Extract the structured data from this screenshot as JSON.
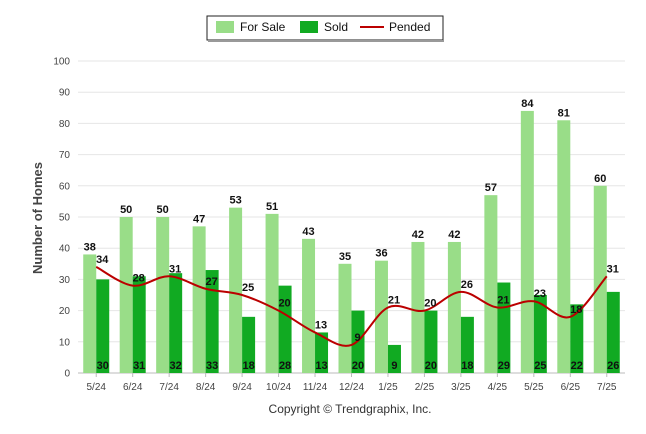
{
  "chart_data": {
    "type": "bar",
    "ylabel": "Number of Homes",
    "ylim": [
      0,
      100
    ],
    "yticks": [
      0,
      10,
      20,
      30,
      40,
      50,
      60,
      70,
      80,
      90,
      100
    ],
    "grid": true,
    "legend_position": "top-center",
    "credit": "Copyright © Trendgraphix, Inc.",
    "categories": [
      "5/24",
      "6/24",
      "7/24",
      "8/24",
      "9/24",
      "10/24",
      "11/24",
      "12/24",
      "1/25",
      "2/25",
      "3/25",
      "4/25",
      "5/25",
      "6/25",
      "7/25"
    ],
    "series": [
      {
        "name": "For Sale",
        "kind": "bar",
        "color": "#99dd88",
        "values": [
          38,
          50,
          50,
          47,
          53,
          51,
          43,
          35,
          36,
          42,
          42,
          57,
          84,
          81,
          60
        ]
      },
      {
        "name": "Sold",
        "kind": "bar",
        "color": "#11aa22",
        "values": [
          30,
          31,
          32,
          33,
          18,
          28,
          13,
          20,
          9,
          20,
          18,
          29,
          25,
          22,
          26
        ]
      },
      {
        "name": "Pended",
        "kind": "line",
        "color": "#bb0000",
        "values": [
          34,
          28,
          31,
          27,
          25,
          20,
          13,
          9,
          21,
          20,
          26,
          21,
          23,
          18,
          31
        ]
      }
    ]
  }
}
